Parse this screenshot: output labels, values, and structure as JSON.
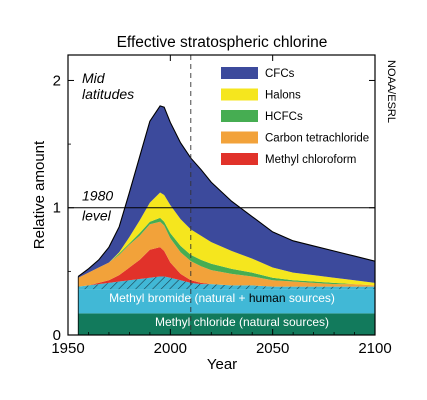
{
  "chart_data": {
    "type": "area",
    "title": "Effective stratospheric chlorine",
    "xlabel": "Year",
    "ylabel": "Relative amount",
    "xlim": [
      1950,
      2100
    ],
    "ylim": [
      0,
      2.2
    ],
    "xticks": [
      1950,
      2000,
      2050,
      2100
    ],
    "yticks": [
      0,
      1,
      2
    ],
    "x": [
      1955,
      1960,
      1965,
      1970,
      1975,
      1980,
      1985,
      1990,
      1995,
      1997,
      2000,
      2005,
      2010,
      2015,
      2020,
      2030,
      2040,
      2050,
      2060,
      2070,
      2080,
      2090,
      2100
    ],
    "series": [
      {
        "name": "Methyl chloride (natural sources)",
        "color": "#127a5c",
        "pattern": "solid",
        "values": [
          0.17,
          0.17,
          0.17,
          0.17,
          0.17,
          0.17,
          0.17,
          0.17,
          0.17,
          0.17,
          0.17,
          0.17,
          0.17,
          0.17,
          0.17,
          0.17,
          0.17,
          0.17,
          0.17,
          0.17,
          0.17,
          0.17,
          0.17
        ]
      },
      {
        "name": "Methyl bromide (natural + human sources)",
        "color": "#41b8d6",
        "pattern": "solid",
        "values": [
          0.19,
          0.19,
          0.19,
          0.19,
          0.19,
          0.19,
          0.19,
          0.19,
          0.19,
          0.19,
          0.19,
          0.19,
          0.19,
          0.19,
          0.19,
          0.19,
          0.19,
          0.19,
          0.19,
          0.19,
          0.19,
          0.19,
          0.19
        ]
      },
      {
        "name": "Methyl bromide (human sources)",
        "color": "#41b8d6",
        "pattern": "hatched",
        "values": [
          0.02,
          0.03,
          0.04,
          0.05,
          0.06,
          0.07,
          0.08,
          0.09,
          0.1,
          0.1,
          0.09,
          0.07,
          0.05,
          0.04,
          0.04,
          0.03,
          0.03,
          0.02,
          0.02,
          0.02,
          0.02,
          0.02,
          0.02
        ]
      },
      {
        "name": "Methyl chloroform",
        "color": "#e1322a",
        "pattern": "solid",
        "values": [
          0.0,
          0.0,
          0.01,
          0.02,
          0.05,
          0.1,
          0.15,
          0.22,
          0.23,
          0.2,
          0.12,
          0.05,
          0.02,
          0.01,
          0.0,
          0.0,
          0.0,
          0.0,
          0.0,
          0.0,
          0.0,
          0.0,
          0.0
        ]
      },
      {
        "name": "Carbon tetrachloride",
        "color": "#f2a23a",
        "pattern": "solid",
        "values": [
          0.07,
          0.1,
          0.12,
          0.14,
          0.16,
          0.18,
          0.19,
          0.2,
          0.2,
          0.2,
          0.19,
          0.17,
          0.15,
          0.13,
          0.11,
          0.09,
          0.07,
          0.05,
          0.04,
          0.03,
          0.02,
          0.02,
          0.01
        ]
      },
      {
        "name": "HCFCs",
        "color": "#46ad52",
        "pattern": "solid",
        "values": [
          0.0,
          0.0,
          0.0,
          0.0,
          0.01,
          0.01,
          0.02,
          0.02,
          0.03,
          0.03,
          0.04,
          0.05,
          0.05,
          0.05,
          0.05,
          0.04,
          0.03,
          0.02,
          0.01,
          0.01,
          0.01,
          0.0,
          0.0
        ]
      },
      {
        "name": "Halons",
        "color": "#f5e61e",
        "pattern": "solid",
        "values": [
          0.0,
          0.0,
          0.0,
          0.0,
          0.01,
          0.05,
          0.1,
          0.15,
          0.2,
          0.21,
          0.22,
          0.21,
          0.2,
          0.19,
          0.17,
          0.14,
          0.11,
          0.08,
          0.06,
          0.05,
          0.04,
          0.03,
          0.02
        ]
      },
      {
        "name": "CFCs",
        "color": "#3c4a9c",
        "pattern": "solid",
        "values": [
          0.01,
          0.03,
          0.06,
          0.12,
          0.2,
          0.35,
          0.5,
          0.64,
          0.68,
          0.69,
          0.65,
          0.6,
          0.56,
          0.52,
          0.47,
          0.39,
          0.33,
          0.28,
          0.25,
          0.23,
          0.21,
          0.19,
          0.17
        ]
      }
    ],
    "annotations": {
      "region": [
        "Mid",
        "latitudes"
      ],
      "reference_level": {
        "value": 1,
        "label": [
          "1980",
          "level"
        ]
      },
      "reference_year": 2010,
      "credit": "NOAA/ESRL"
    },
    "band_labels": {
      "methyl_bromide": [
        "Methyl bromide (natural + ",
        "human",
        " sources)"
      ],
      "methyl_chloride": "Methyl chloride  (natural sources)"
    },
    "legend": {
      "placement": "top-right",
      "entries": [
        {
          "label": "CFCs",
          "color": "#3c4a9c"
        },
        {
          "label": "Halons",
          "color": "#f5e61e"
        },
        {
          "label": "HCFCs",
          "color": "#46ad52"
        },
        {
          "label": "Carbon tetrachloride",
          "color": "#f2a23a"
        },
        {
          "label": "Methyl chloroform",
          "color": "#e1322a"
        }
      ]
    },
    "grid": false
  }
}
